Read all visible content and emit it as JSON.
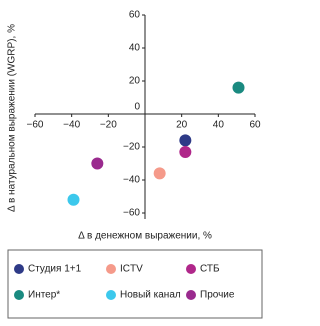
{
  "chart_data": {
    "type": "scatter",
    "x_label": "Δ в денежном выражении, %",
    "y_label": "Δ в натуральном выражении (WGRP), %",
    "xlim": [
      -60,
      60
    ],
    "ylim": [
      -60,
      60
    ],
    "xticks": [
      {
        "value": -60,
        "label": "−60"
      },
      {
        "value": -40,
        "label": "−40"
      },
      {
        "value": -20,
        "label": "−20"
      },
      20,
      40,
      60
    ],
    "yticks": [
      60,
      40,
      20,
      0,
      {
        "value": -20,
        "label": "−20"
      },
      {
        "value": -40,
        "label": "−40"
      },
      {
        "value": -60,
        "label": "−60"
      }
    ],
    "series": [
      {
        "name": "Студия 1+1",
        "color": "#2e3a87",
        "x": [
          22
        ],
        "values": [
          -16
        ]
      },
      {
        "name": "ICTV",
        "color": "#f59a8a",
        "x": [
          8
        ],
        "values": [
          -36
        ]
      },
      {
        "name": "СТБ",
        "color": "#b0278a",
        "x": [
          22
        ],
        "values": [
          -23
        ]
      },
      {
        "name": "Интер*",
        "color": "#1a8a80",
        "x": [
          51
        ],
        "values": [
          16
        ]
      },
      {
        "name": "Новый канал",
        "color": "#3cc8ec",
        "x": [
          -39
        ],
        "values": [
          -52
        ]
      },
      {
        "name": "Прочие",
        "color": "#9a2a8e",
        "x": [
          -26
        ],
        "values": [
          -30
        ]
      }
    ]
  }
}
